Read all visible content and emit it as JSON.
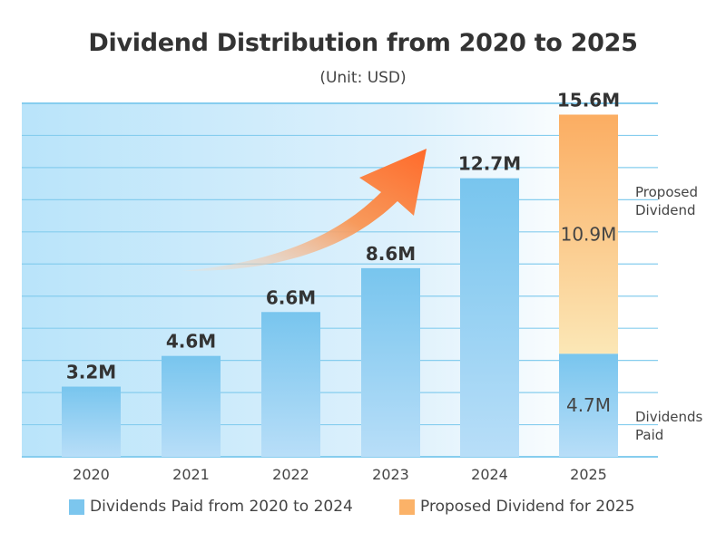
{
  "chart_data": {
    "type": "bar",
    "title": "Dividend Distribution from 2020 to 2025",
    "subtitle": "(Unit: USD)",
    "categories": [
      "2020",
      "2021",
      "2022",
      "2023",
      "2024",
      "2025"
    ],
    "series": [
      {
        "name": "Dividends Paid from 2020 to 2024",
        "values": [
          3.2,
          4.6,
          6.6,
          8.6,
          12.7,
          4.7
        ],
        "color": "#7cc6ee"
      },
      {
        "name": "Proposed Dividend for 2025",
        "values": [
          0,
          0,
          0,
          0,
          0,
          10.9
        ],
        "color": "#fbb268"
      }
    ],
    "data_labels": [
      "3.2M",
      "4.6M",
      "6.6M",
      "8.6M",
      "12.7M",
      "15.6M"
    ],
    "segment_labels": {
      "paid": "4.7M",
      "proposed": "10.9M"
    },
    "side_labels": {
      "proposed": [
        "Proposed",
        "Dividend"
      ],
      "paid": [
        "Dividends",
        "Paid"
      ]
    },
    "ylim": [
      0,
      16
    ],
    "grid": true,
    "legend_position": "bottom",
    "annotation": "upward-trend-arrow"
  }
}
